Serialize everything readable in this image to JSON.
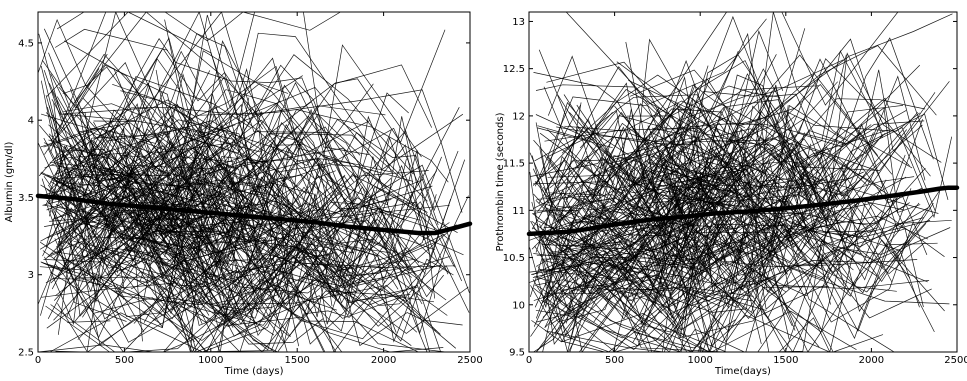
{
  "chart_data": [
    {
      "type": "line",
      "title": "",
      "xlabel": "Time (days)",
      "ylabel": "Albumin (gm/dl)",
      "xlim": [
        0,
        2500
      ],
      "ylim": [
        2.5,
        4.7
      ],
      "x_ticks": [
        0,
        500,
        1000,
        1500,
        2000,
        2500
      ],
      "y_ticks": [
        2.5,
        3,
        3.5,
        4,
        4.5
      ],
      "x_tick_labels": [
        "0",
        "500",
        "1000",
        "1500",
        "2000",
        "2500"
      ],
      "y_tick_labels": [
        "2.5",
        "3",
        "3.5",
        "4",
        "4.5"
      ],
      "grid": false,
      "legend": "none",
      "series": [
        {
          "role": "mean trend (thick)",
          "x": [
            0,
            200,
            400,
            600,
            800,
            1000,
            1200,
            1400,
            1600,
            1800,
            2000,
            2200,
            2300,
            2400,
            2500
          ],
          "y": [
            3.51,
            3.49,
            3.46,
            3.44,
            3.42,
            3.4,
            3.38,
            3.36,
            3.34,
            3.31,
            3.29,
            3.27,
            3.27,
            3.3,
            3.33
          ]
        }
      ],
      "background_series_count": 300
    },
    {
      "type": "line",
      "title": "",
      "xlabel": "Time(days)",
      "ylabel": "Prothrombin time (seconds)",
      "xlim": [
        0,
        2500
      ],
      "ylim": [
        9.5,
        13.1
      ],
      "x_ticks": [
        0,
        500,
        1000,
        1500,
        2000,
        2500
      ],
      "y_ticks": [
        9.5,
        10,
        10.5,
        11,
        11.5,
        12,
        12.5,
        13
      ],
      "x_tick_labels": [
        "0",
        "500",
        "1000",
        "1500",
        "2000",
        "2500"
      ],
      "y_tick_labels": [
        "9.5",
        "10",
        "10.5",
        "11",
        "11.5",
        "12",
        "12.5",
        "13"
      ],
      "grid": false,
      "legend": "none",
      "series": [
        {
          "role": "mean trend (thick)",
          "x": [
            0,
            100,
            200,
            300,
            400,
            500,
            700,
            900,
            1100,
            1300,
            1500,
            1700,
            1900,
            2100,
            2300,
            2400,
            2450,
            2500
          ],
          "y": [
            10.75,
            10.76,
            10.77,
            10.79,
            10.82,
            10.85,
            10.9,
            10.93,
            10.97,
            10.99,
            11.02,
            11.06,
            11.1,
            11.15,
            11.2,
            11.23,
            11.24,
            11.24
          ]
        }
      ],
      "background_series_count": 300
    }
  ]
}
